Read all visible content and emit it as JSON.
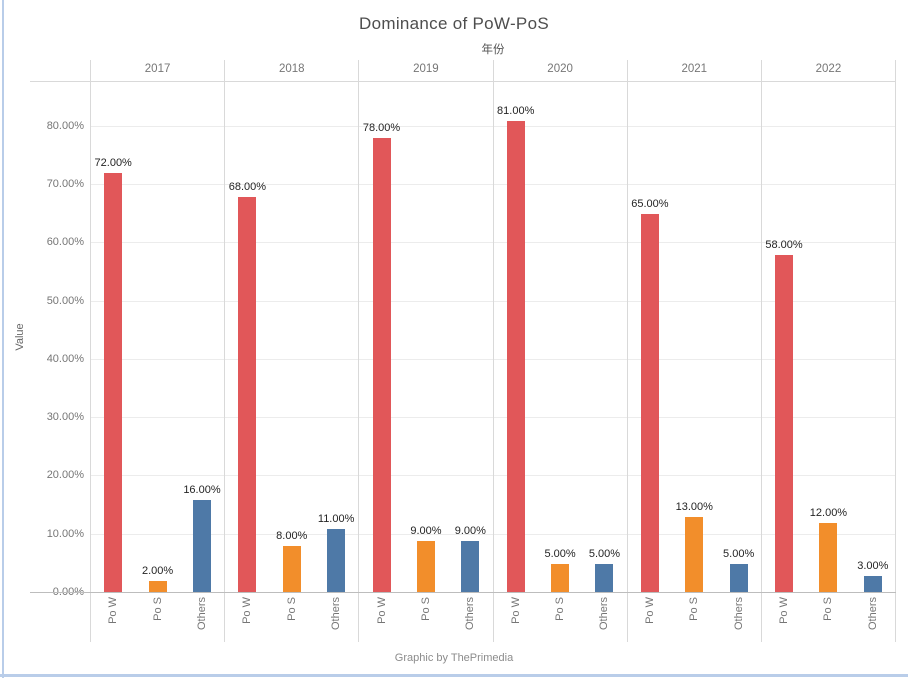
{
  "frame": {
    "title": "Dominance of PoW-PoS",
    "caption": "Graphic by ThePrimedia"
  },
  "colors": {
    "pow_red": "#e15759",
    "pos_orange": "#f28e2b",
    "others_blue": "#4e79a7",
    "frame_border_blue": "#b9cde9",
    "divider_gray": "#d9d9d9",
    "gridline_gray": "#ececec"
  },
  "chart_data": {
    "type": "bar",
    "title": "Dominance of PoW-PoS",
    "column_axis_label": "年份",
    "ylabel": "Value",
    "xlabel": "",
    "categories": [
      "2017",
      "2018",
      "2019",
      "2020",
      "2021",
      "2022"
    ],
    "series_labels": [
      "Po W",
      "Po S",
      "Others"
    ],
    "series_colors": [
      "#e15759",
      "#f28e2b",
      "#4e79a7"
    ],
    "series": [
      {
        "name": "Po W",
        "values": [
          72,
          68,
          78,
          81,
          65,
          58
        ]
      },
      {
        "name": "Po S",
        "values": [
          2,
          8,
          9,
          5,
          13,
          12
        ]
      },
      {
        "name": "Others",
        "values": [
          16,
          11,
          9,
          5,
          5,
          3
        ]
      }
    ],
    "value_labels": [
      [
        "72.00%",
        "2.00%",
        "16.00%"
      ],
      [
        "68.00%",
        "8.00%",
        "11.00%"
      ],
      [
        "78.00%",
        "9.00%",
        "9.00%"
      ],
      [
        "81.00%",
        "5.00%",
        "5.00%"
      ],
      [
        "65.00%",
        "13.00%",
        "5.00%"
      ],
      [
        "58.00%",
        "12.00%",
        "3.00%"
      ]
    ],
    "y_ticks": [
      "0.00%",
      "10.00%",
      "20.00%",
      "30.00%",
      "40.00%",
      "50.00%",
      "60.00%",
      "70.00%",
      "80.00%"
    ],
    "y_tick_values": [
      0,
      10,
      20,
      30,
      40,
      50,
      60,
      70,
      80
    ],
    "ylim": [
      0,
      87.6
    ],
    "grid": true,
    "legend": "none"
  }
}
